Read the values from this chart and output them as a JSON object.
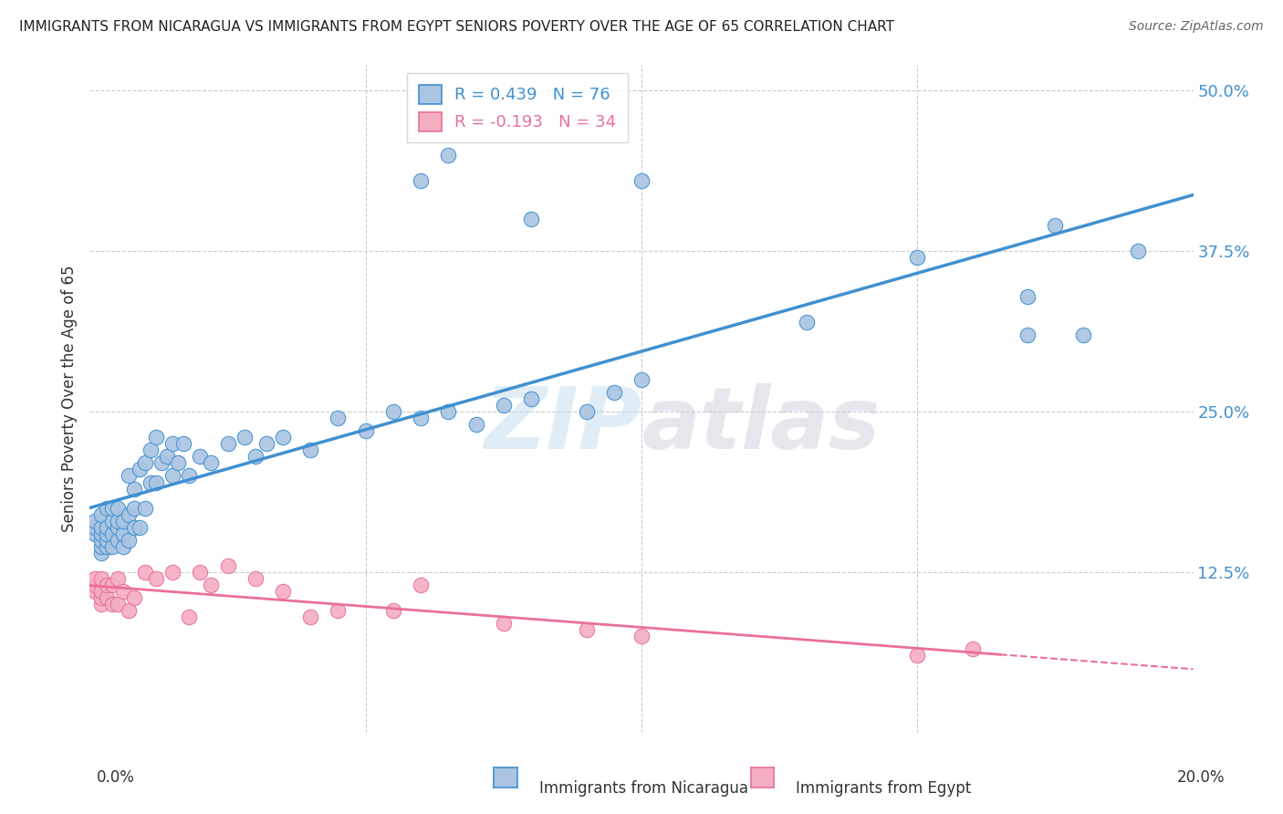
{
  "title": "IMMIGRANTS FROM NICARAGUA VS IMMIGRANTS FROM EGYPT SENIORS POVERTY OVER THE AGE OF 65 CORRELATION CHART",
  "source": "Source: ZipAtlas.com",
  "ylabel": "Seniors Poverty Over the Age of 65",
  "legend_nicaragua": "R = 0.439   N = 76",
  "legend_egypt": "R = -0.193   N = 34",
  "legend_label_nicaragua": "Immigrants from Nicaragua",
  "legend_label_egypt": "Immigrants from Egypt",
  "yticks": [
    0.125,
    0.25,
    0.375,
    0.5
  ],
  "ytick_labels": [
    "12.5%",
    "25.0%",
    "37.5%",
    "50.0%"
  ],
  "color_nicaragua": "#aac4e2",
  "color_egypt": "#f5adc0",
  "line_color_nicaragua": "#4090d0",
  "line_color_egypt": "#e8709a",
  "watermark_zip": "ZIP",
  "watermark_atlas": "atlas",
  "nicaragua_x": [
    0.001,
    0.001,
    0.001,
    0.002,
    0.002,
    0.002,
    0.002,
    0.002,
    0.002,
    0.003,
    0.003,
    0.003,
    0.003,
    0.003,
    0.004,
    0.004,
    0.004,
    0.004,
    0.005,
    0.005,
    0.005,
    0.005,
    0.006,
    0.006,
    0.006,
    0.007,
    0.007,
    0.007,
    0.008,
    0.008,
    0.008,
    0.009,
    0.009,
    0.01,
    0.01,
    0.011,
    0.011,
    0.012,
    0.012,
    0.013,
    0.014,
    0.015,
    0.015,
    0.016,
    0.017,
    0.018,
    0.02,
    0.022,
    0.025,
    0.028,
    0.03,
    0.032,
    0.035,
    0.04,
    0.045,
    0.05,
    0.055,
    0.06,
    0.065,
    0.07,
    0.075,
    0.08,
    0.09,
    0.095,
    0.1,
    0.06,
    0.065,
    0.08,
    0.1,
    0.13,
    0.15,
    0.17,
    0.17,
    0.175,
    0.18,
    0.19
  ],
  "nicaragua_y": [
    0.155,
    0.16,
    0.165,
    0.14,
    0.145,
    0.15,
    0.155,
    0.16,
    0.17,
    0.145,
    0.15,
    0.155,
    0.16,
    0.175,
    0.145,
    0.155,
    0.165,
    0.175,
    0.15,
    0.16,
    0.165,
    0.175,
    0.145,
    0.155,
    0.165,
    0.15,
    0.17,
    0.2,
    0.16,
    0.175,
    0.19,
    0.16,
    0.205,
    0.175,
    0.21,
    0.195,
    0.22,
    0.195,
    0.23,
    0.21,
    0.215,
    0.2,
    0.225,
    0.21,
    0.225,
    0.2,
    0.215,
    0.21,
    0.225,
    0.23,
    0.215,
    0.225,
    0.23,
    0.22,
    0.245,
    0.235,
    0.25,
    0.245,
    0.25,
    0.24,
    0.255,
    0.26,
    0.25,
    0.265,
    0.275,
    0.43,
    0.45,
    0.4,
    0.43,
    0.32,
    0.37,
    0.31,
    0.34,
    0.395,
    0.31,
    0.375
  ],
  "egypt_x": [
    0.001,
    0.001,
    0.001,
    0.002,
    0.002,
    0.002,
    0.002,
    0.003,
    0.003,
    0.004,
    0.004,
    0.005,
    0.005,
    0.006,
    0.007,
    0.008,
    0.01,
    0.012,
    0.015,
    0.018,
    0.02,
    0.022,
    0.025,
    0.03,
    0.035,
    0.04,
    0.045,
    0.055,
    0.06,
    0.075,
    0.09,
    0.1,
    0.15,
    0.16
  ],
  "egypt_y": [
    0.11,
    0.115,
    0.12,
    0.1,
    0.105,
    0.11,
    0.12,
    0.105,
    0.115,
    0.1,
    0.115,
    0.1,
    0.12,
    0.11,
    0.095,
    0.105,
    0.125,
    0.12,
    0.125,
    0.09,
    0.125,
    0.115,
    0.13,
    0.12,
    0.11,
    0.09,
    0.095,
    0.095,
    0.115,
    0.085,
    0.08,
    0.075,
    0.06,
    0.065
  ]
}
